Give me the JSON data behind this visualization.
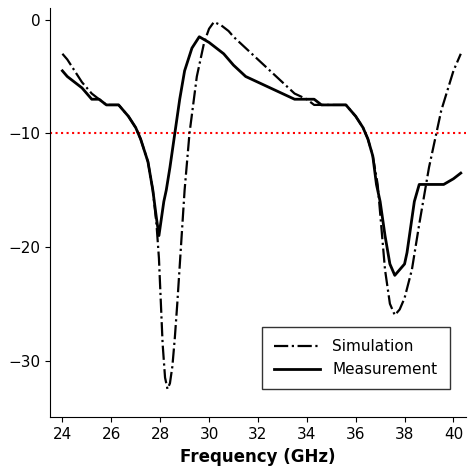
{
  "title": "",
  "xlabel": "Frequency (GHz)",
  "ylabel": "",
  "xlim": [
    23.5,
    40.5
  ],
  "ylim": [
    -35,
    1
  ],
  "yticks": [
    0,
    -10,
    -20,
    -30
  ],
  "xticks": [
    24,
    26,
    28,
    30,
    32,
    34,
    36,
    38,
    40
  ],
  "ref_line_y": -10,
  "ref_line_color": "red",
  "ref_line_style": "dotted",
  "simulation_color": "#000000",
  "measurement_color": "#000000",
  "background_color": "#ffffff",
  "sim_x": [
    24.0,
    24.2,
    24.5,
    24.8,
    25.0,
    25.2,
    25.5,
    25.8,
    26.1,
    26.3,
    26.5,
    26.7,
    27.0,
    27.2,
    27.5,
    27.7,
    27.85,
    27.95,
    28.05,
    28.1,
    28.2,
    28.3,
    28.4,
    28.5,
    28.6,
    28.7,
    28.85,
    29.0,
    29.2,
    29.5,
    29.8,
    30.0,
    30.2,
    30.5,
    30.8,
    31.0,
    31.5,
    32.0,
    32.5,
    33.0,
    33.5,
    34.0,
    34.3,
    34.6,
    35.0,
    35.3,
    35.6,
    36.0,
    36.3,
    36.5,
    36.7,
    36.9,
    37.0,
    37.1,
    37.2,
    37.4,
    37.6,
    37.8,
    38.0,
    38.3,
    38.6,
    39.0,
    39.5,
    40.0,
    40.3
  ],
  "sim_y": [
    -3.0,
    -3.5,
    -4.5,
    -5.5,
    -6.0,
    -6.5,
    -7.0,
    -7.5,
    -7.5,
    -7.5,
    -8.0,
    -8.5,
    -9.5,
    -10.5,
    -12.5,
    -15.0,
    -18.0,
    -21.0,
    -26.0,
    -28.5,
    -31.5,
    -32.5,
    -32.0,
    -30.5,
    -28.0,
    -25.0,
    -20.0,
    -15.0,
    -10.0,
    -5.0,
    -2.0,
    -0.8,
    -0.2,
    -0.5,
    -1.0,
    -1.5,
    -2.5,
    -3.5,
    -4.5,
    -5.5,
    -6.5,
    -7.0,
    -7.5,
    -7.5,
    -7.5,
    -7.5,
    -7.5,
    -8.5,
    -9.5,
    -10.5,
    -12.0,
    -14.5,
    -17.0,
    -19.5,
    -22.0,
    -25.0,
    -26.0,
    -25.5,
    -24.5,
    -22.0,
    -18.0,
    -13.0,
    -8.0,
    -4.5,
    -3.0
  ],
  "meas_x": [
    24.0,
    24.2,
    24.5,
    24.8,
    25.0,
    25.2,
    25.5,
    25.8,
    26.1,
    26.3,
    26.5,
    26.7,
    27.0,
    27.2,
    27.5,
    27.7,
    27.85,
    27.95,
    28.05,
    28.15,
    28.25,
    28.4,
    28.6,
    28.8,
    29.0,
    29.3,
    29.6,
    30.0,
    30.3,
    30.6,
    31.0,
    31.5,
    32.0,
    32.5,
    33.0,
    33.5,
    34.0,
    34.3,
    34.6,
    35.0,
    35.3,
    35.6,
    36.0,
    36.3,
    36.5,
    36.7,
    36.85,
    37.0,
    37.1,
    37.2,
    37.4,
    37.6,
    37.8,
    38.0,
    38.1,
    38.2,
    38.4,
    38.6,
    38.8,
    39.0,
    39.3,
    39.6,
    40.0,
    40.3
  ],
  "meas_y": [
    -4.5,
    -5.0,
    -5.5,
    -6.0,
    -6.5,
    -7.0,
    -7.0,
    -7.5,
    -7.5,
    -7.5,
    -8.0,
    -8.5,
    -9.5,
    -10.5,
    -12.5,
    -15.0,
    -17.5,
    -19.0,
    -17.5,
    -16.0,
    -15.0,
    -13.0,
    -10.0,
    -7.0,
    -4.5,
    -2.5,
    -1.5,
    -2.0,
    -2.5,
    -3.0,
    -4.0,
    -5.0,
    -5.5,
    -6.0,
    -6.5,
    -7.0,
    -7.0,
    -7.0,
    -7.5,
    -7.5,
    -7.5,
    -7.5,
    -8.5,
    -9.5,
    -10.5,
    -12.0,
    -14.5,
    -16.0,
    -17.5,
    -19.0,
    -21.5,
    -22.5,
    -22.0,
    -21.5,
    -20.5,
    -19.0,
    -16.0,
    -14.5,
    -14.5,
    -14.5,
    -14.5,
    -14.5,
    -14.0,
    -13.5
  ],
  "sim_label": "Simulation",
  "meas_label": "Measurement"
}
